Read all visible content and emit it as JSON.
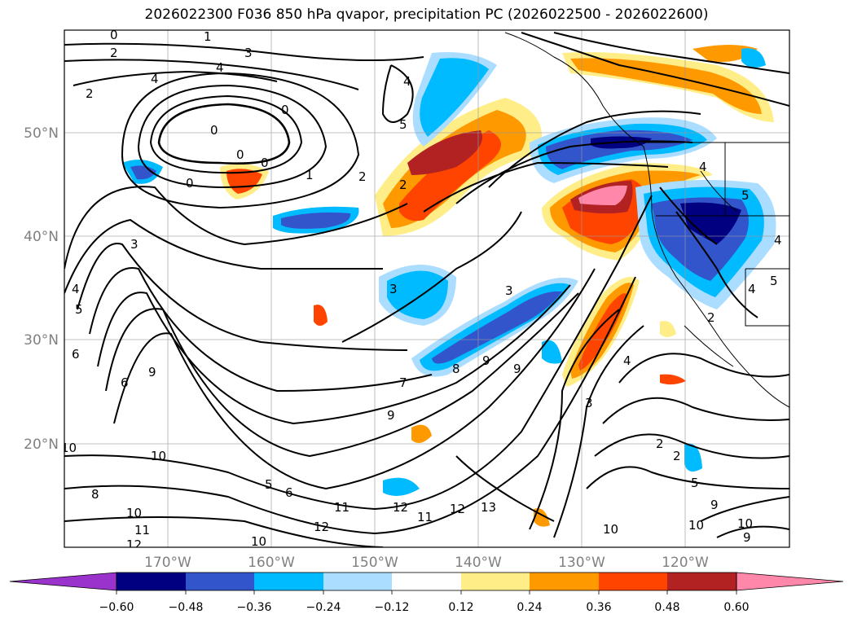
{
  "title": "2026022300 F036 850 hPa qvapor, precipitation PC (2026022500 - 2026022600)",
  "map": {
    "lat_labels": [
      "50°N",
      "40°N",
      "30°N",
      "20°N"
    ],
    "lon_labels": [
      "170°W",
      "160°W",
      "150°W",
      "140°W",
      "130°W",
      "120°W"
    ],
    "tick_color": "#808080",
    "contour_labels": [
      "0",
      "1",
      "2",
      "3",
      "4",
      "5",
      "6",
      "7",
      "8",
      "9",
      "10",
      "11",
      "12",
      "13"
    ]
  },
  "colorbar": {
    "tick_labels": [
      "−0.60",
      "−0.48",
      "−0.36",
      "−0.24",
      "−0.12",
      "0.12",
      "0.24",
      "0.36",
      "0.48",
      "0.60"
    ],
    "colors": [
      "#9933cc",
      "#000080",
      "#3355cc",
      "#00bbff",
      "#aaddff",
      "#ffffff",
      "#ffee88",
      "#ff9900",
      "#ff4400",
      "#b22222",
      "#ff88aa"
    ]
  },
  "chart_data": {
    "type": "map",
    "title": "2026022300 F036 850 hPa qvapor, precipitation PC (2026022500 - 2026022600)",
    "contour_levels": [
      0,
      1,
      2,
      3,
      4,
      5,
      6,
      7,
      8,
      9,
      10,
      11,
      12,
      13
    ],
    "colorbar_levels": [
      -0.6,
      -0.48,
      -0.36,
      -0.24,
      -0.12,
      0.12,
      0.24,
      0.36,
      0.48,
      0.6
    ],
    "lat_ticks": [
      50,
      40,
      30,
      20
    ],
    "lon_ticks": [
      -170,
      -160,
      -150,
      -140,
      -130,
      -120
    ],
    "extend": "both"
  }
}
